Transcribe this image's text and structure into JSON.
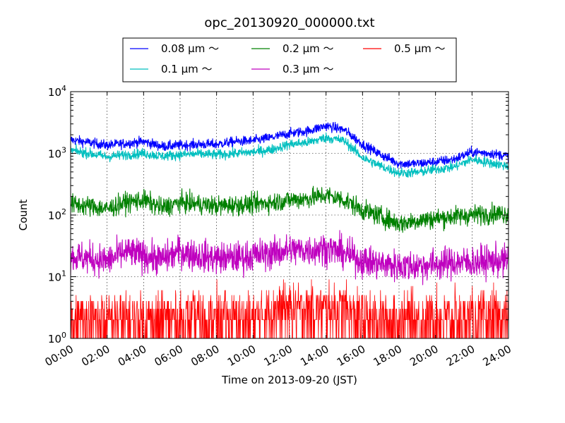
{
  "chart_data": {
    "type": "line",
    "title": "opc_20130920_000000.txt",
    "xlabel": "Time on 2013-09-20 (JST)",
    "ylabel": "Count",
    "yscale": "log",
    "ylim": [
      1,
      10000
    ],
    "xlim": [
      "00:00",
      "24:00"
    ],
    "x_tick_labels": [
      "00:00",
      "02:00",
      "04:00",
      "06:00",
      "08:00",
      "10:00",
      "12:00",
      "14:00",
      "16:00",
      "18:00",
      "20:00",
      "22:00",
      "24:00"
    ],
    "y_tick_labels": [
      {
        "base": "10",
        "exp": "0"
      },
      {
        "base": "10",
        "exp": "1"
      },
      {
        "base": "10",
        "exp": "2"
      },
      {
        "base": "10",
        "exp": "3"
      },
      {
        "base": "10",
        "exp": "4"
      }
    ],
    "grid": true,
    "legend_position": "top-center",
    "x": [
      "00:00",
      "01:00",
      "02:00",
      "03:00",
      "04:00",
      "05:00",
      "06:00",
      "07:00",
      "08:00",
      "09:00",
      "10:00",
      "11:00",
      "12:00",
      "13:00",
      "14:00",
      "15:00",
      "16:00",
      "17:00",
      "18:00",
      "19:00",
      "20:00",
      "21:00",
      "22:00",
      "23:00",
      "24:00"
    ],
    "series": [
      {
        "name": "0.08 μm ～",
        "color": "#0000ff",
        "noise": 0.04,
        "values": [
          1650,
          1500,
          1350,
          1450,
          1550,
          1300,
          1350,
          1400,
          1400,
          1550,
          1600,
          1800,
          2100,
          2300,
          2800,
          2400,
          1400,
          950,
          680,
          680,
          730,
          800,
          1050,
          1000,
          900
        ]
      },
      {
        "name": "0.1 μm ～",
        "color": "#00bfbf",
        "noise": 0.04,
        "values": [
          1120,
          1000,
          880,
          950,
          1000,
          900,
          950,
          980,
          950,
          1000,
          1050,
          1150,
          1400,
          1500,
          1800,
          1600,
          850,
          620,
          480,
          490,
          550,
          600,
          800,
          700,
          620
        ]
      },
      {
        "name": "0.2 μm ～",
        "color": "#008000",
        "noise": 0.08,
        "values": [
          150,
          140,
          125,
          160,
          175,
          130,
          160,
          150,
          140,
          145,
          150,
          160,
          175,
          185,
          210,
          175,
          120,
          95,
          72,
          82,
          88,
          95,
          100,
          105,
          105
        ]
      },
      {
        "name": "0.3 μm ～",
        "color": "#bf00bf",
        "noise": 0.13,
        "values": [
          21,
          20,
          18,
          25,
          22,
          19,
          26,
          22,
          20,
          20,
          22,
          24,
          27,
          27,
          29,
          24,
          18,
          16,
          15,
          15,
          16,
          17,
          17,
          18,
          18
        ]
      },
      {
        "name": "0.5 μm ～",
        "color": "#ff0000",
        "noise": 0,
        "values": [
          2,
          2,
          2,
          2,
          2,
          2,
          2,
          2,
          2,
          2,
          2,
          3,
          3,
          3,
          3,
          3,
          2,
          2,
          2,
          2,
          2,
          2,
          2,
          2,
          2
        ]
      }
    ]
  }
}
